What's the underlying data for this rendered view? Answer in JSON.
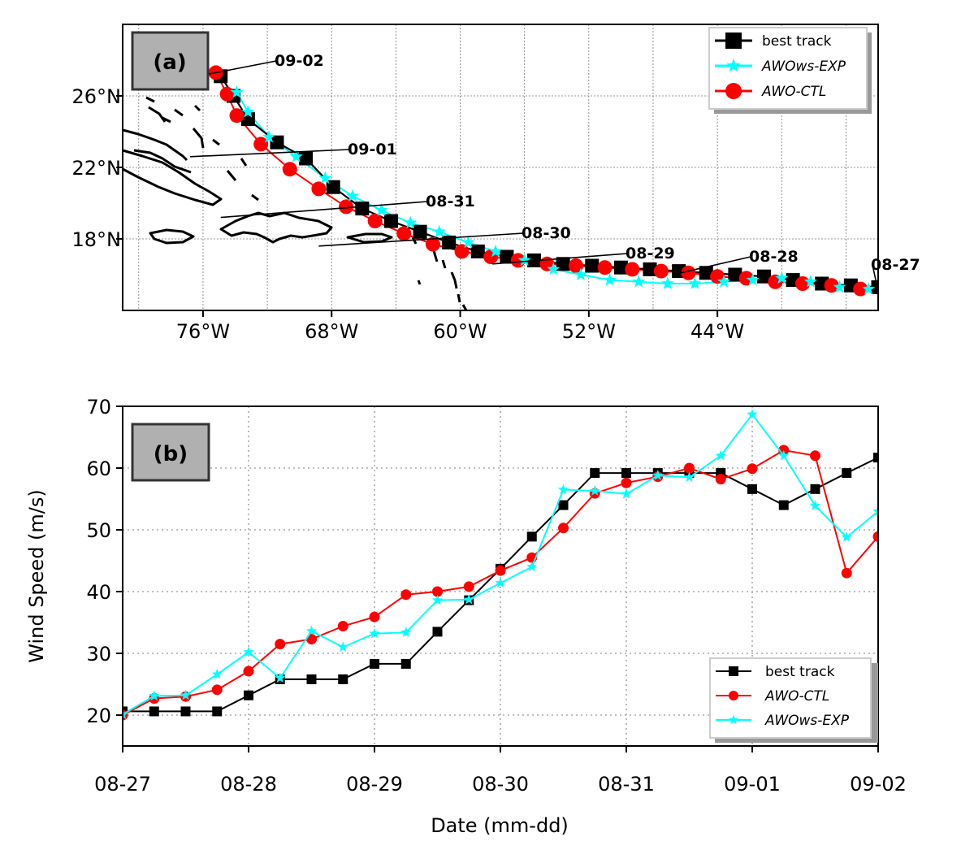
{
  "panels": {
    "a": {
      "label": "(a)"
    },
    "b": {
      "label": "(b)"
    }
  },
  "chart_data": [
    {
      "type": "scatter",
      "panel": "(a)",
      "title": "",
      "xlabel": "",
      "ylabel": "",
      "xlim": [
        -81,
        34
      ],
      "ylim": [
        14,
        30
      ],
      "xticks": [
        -76,
        -68,
        -60,
        -52,
        -44
      ],
      "xtick_labels": [
        "76°W",
        "68°W",
        "60°W",
        "52°W",
        "44°W"
      ],
      "yticks": [
        18,
        22,
        26
      ],
      "ytick_labels": [
        "18°N",
        "22°N",
        "26°N"
      ],
      "grid": true,
      "legend_position": "top-right",
      "legend": [
        "best track",
        "AWOws-EXP",
        "AWO-CTL"
      ],
      "map": "Caribbean coastlines",
      "series": [
        {
          "name": "best track",
          "color": "#000000",
          "marker": "square",
          "lon": [
            -34,
            -35.7,
            -37.5,
            -39.3,
            -41.1,
            -42.9,
            -44.7,
            -46.4,
            -48.2,
            -50.0,
            -51.8,
            -53.6,
            -55.4,
            -57.1,
            -58.9,
            -60.7,
            -62.5,
            -64.3,
            -66.1,
            -67.9,
            -69.6,
            -71.4,
            -73.2,
            -74.1,
            -74.9
          ],
          "lat": [
            15.3,
            15.4,
            15.5,
            15.7,
            15.9,
            16.0,
            16.1,
            16.2,
            16.3,
            16.4,
            16.5,
            16.6,
            16.8,
            17.0,
            17.3,
            17.8,
            18.4,
            19.0,
            19.7,
            20.9,
            22.5,
            23.4,
            24.7,
            26.0,
            27.1
          ]
        },
        {
          "name": "AWOws-EXP",
          "color": "#00ffff",
          "marker": "star",
          "lon": [
            -34.6,
            -36.4,
            -38.2,
            -40.0,
            -41.8,
            -43.6,
            -45.4,
            -47.1,
            -48.9,
            -50.7,
            -52.5,
            -54.2,
            -56.0,
            -57.8,
            -59.5,
            -61.3,
            -63.1,
            -64.9,
            -66.7,
            -68.4,
            -70.2,
            -71.9,
            -73.2,
            -73.9
          ],
          "lat": [
            15.2,
            15.3,
            15.6,
            15.8,
            15.7,
            15.6,
            15.5,
            15.5,
            15.6,
            15.7,
            16.0,
            16.3,
            16.8,
            17.3,
            17.8,
            18.4,
            18.9,
            19.6,
            20.4,
            21.4,
            22.6,
            23.7,
            25.1,
            26.2
          ]
        },
        {
          "name": "AWO-CTL",
          "color": "#ff0000",
          "marker": "circle",
          "lon": [
            -35.1,
            -36.9,
            -38.7,
            -40.4,
            -42.2,
            -44.0,
            -45.8,
            -47.5,
            -49.3,
            -51.0,
            -52.8,
            -54.6,
            -56.4,
            -58.1,
            -59.9,
            -61.7,
            -63.5,
            -65.3,
            -67.1,
            -68.8,
            -70.6,
            -72.4,
            -73.9,
            -74.5,
            -75.2
          ],
          "lat": [
            15.2,
            15.4,
            15.5,
            15.6,
            15.8,
            15.9,
            16.1,
            16.2,
            16.3,
            16.4,
            16.5,
            16.6,
            16.8,
            17.0,
            17.3,
            17.7,
            18.3,
            19.0,
            19.8,
            20.8,
            21.9,
            23.3,
            24.9,
            26.1,
            27.3
          ]
        }
      ],
      "annotations": [
        {
          "text": "08-27",
          "lon": -34.1,
          "lat": 15.5
        },
        {
          "text": "08-28",
          "lon": -46.3,
          "lat": 16.1
        },
        {
          "text": "08-29",
          "lon": -58.0,
          "lat": 16.6
        },
        {
          "text": "08-30",
          "lon": -68.8,
          "lat": 17.6
        },
        {
          "text": "08-31",
          "lon": -74.9,
          "lat": 19.2
        },
        {
          "text": "09-01",
          "lon": -76.8,
          "lat": 22.6
        },
        {
          "text": "09-02",
          "lon": -77.5,
          "lat": 26.9
        }
      ]
    },
    {
      "type": "line",
      "panel": "(b)",
      "title": "",
      "xlabel": "Date (mm-dd)",
      "ylabel": "Wind Speed (m/s)",
      "ylim": [
        15,
        70
      ],
      "yticks": [
        20,
        30,
        40,
        50,
        60,
        70
      ],
      "xlim": [
        "08-27",
        "09-02"
      ],
      "xtick_labels": [
        "08-27",
        "08-28",
        "08-29",
        "08-30",
        "08-31",
        "09-01",
        "09-02"
      ],
      "grid": true,
      "legend_position": "lower-right",
      "legend": [
        "best track",
        "AWO-CTL",
        "AWOws-EXP"
      ],
      "x": [
        "08-27 00:00",
        "08-27 06:00",
        "08-27 12:00",
        "08-27 18:00",
        "08-28 00:00",
        "08-28 06:00",
        "08-28 12:00",
        "08-28 18:00",
        "08-29 00:00",
        "08-29 06:00",
        "08-29 12:00",
        "08-29 18:00",
        "08-30 00:00",
        "08-30 06:00",
        "08-30 12:00",
        "08-30 18:00",
        "08-31 00:00",
        "08-31 06:00",
        "08-31 12:00",
        "08-31 18:00",
        "09-01 00:00",
        "09-01 06:00",
        "09-01 12:00",
        "09-01 18:00",
        "09-02 00:00"
      ],
      "series": [
        {
          "name": "best track",
          "color": "#000000",
          "marker": "square",
          "values": [
            20.6,
            20.6,
            20.6,
            20.6,
            23.2,
            25.8,
            25.8,
            25.8,
            28.3,
            28.3,
            33.5,
            38.6,
            43.7,
            48.9,
            54.0,
            59.2,
            59.2,
            59.2,
            59.2,
            59.2,
            56.6,
            54.0,
            56.6,
            59.2,
            61.7
          ]
        },
        {
          "name": "AWO-CTL",
          "color": "#ff0000",
          "marker": "circle",
          "values": [
            20.0,
            22.7,
            23.0,
            24.1,
            27.1,
            31.5,
            32.3,
            34.4,
            35.9,
            39.5,
            40.0,
            40.8,
            43.4,
            45.5,
            50.3,
            55.9,
            57.6,
            58.6,
            60.0,
            58.2,
            59.9,
            62.9,
            62.0,
            43.0,
            48.9
          ]
        },
        {
          "name": "AWOws-EXP",
          "color": "#00ffff",
          "marker": "star",
          "values": [
            20.1,
            23.1,
            23.2,
            26.6,
            30.2,
            26.0,
            33.6,
            31.0,
            33.2,
            33.4,
            38.6,
            38.7,
            41.4,
            44.0,
            56.5,
            56.3,
            55.8,
            58.8,
            58.5,
            62.0,
            68.7,
            62.0,
            53.9,
            48.8,
            53.0
          ]
        }
      ]
    }
  ]
}
